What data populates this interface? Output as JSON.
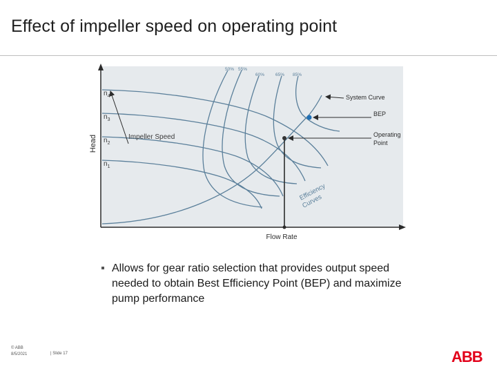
{
  "slide": {
    "title": "Effect of impeller speed on operating point",
    "bullet": "Allows for gear ratio selection that provides output speed needed to obtain Best Efficiency Point (BEP) and maximize pump performance",
    "bullet_marker": "▪"
  },
  "diagram": {
    "y_axis_label": "Head",
    "x_axis_label": "Flow Rate",
    "speed_labels": [
      {
        "base": "n",
        "sub": "4"
      },
      {
        "base": "n",
        "sub": "3"
      },
      {
        "base": "n",
        "sub": "2"
      },
      {
        "base": "n",
        "sub": "1"
      }
    ],
    "impeller_speed_label": "Impeller Speed",
    "efficiency_labels": [
      "50%",
      "55%",
      "60%",
      "65%",
      "85%"
    ],
    "efficiency_curves_label_1": "Efficiency",
    "efficiency_curves_label_2": "Curves",
    "system_curve_label": "System Curve",
    "bep_label": "BEP",
    "operating_point_label_1": "Operating",
    "operating_point_label_2": "Point",
    "colors": {
      "curve": "#5a7f9a",
      "axis": "#2b2b2b",
      "bep": "#1f6fb5",
      "plot_bg": "#e6eaed"
    }
  },
  "footer": {
    "copyright": "© ABB",
    "date": "8/5/2021",
    "slide_number": "| Slide 17"
  },
  "logo": {
    "text": "ABB",
    "color": "#e2001a"
  }
}
